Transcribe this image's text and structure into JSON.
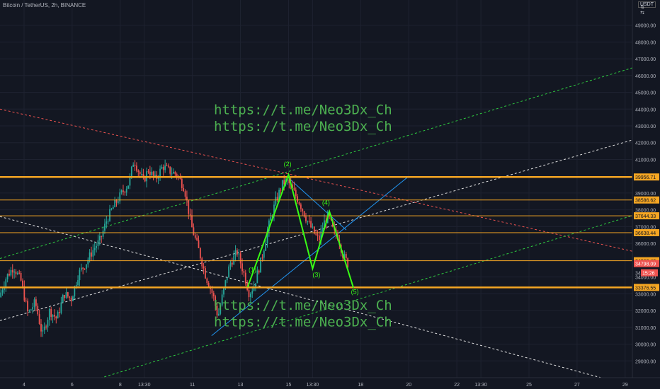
{
  "header": {
    "title": "Bitcoin / TetherUS, 2h, BINANCE",
    "unit": "USDT"
  },
  "colors": {
    "background": "#131722",
    "up": "#26a69a",
    "down": "#ef5350",
    "level": "#f5a623",
    "wave": "#39ff14",
    "text_link": "#4caf50"
  },
  "chart_data": {
    "type": "candlestick",
    "ylim": [
      28000,
      50500
    ],
    "y_ticks": [
      29000,
      30000,
      31000,
      32000,
      33000,
      34000,
      35000,
      36000,
      37000,
      38000,
      39000,
      40000,
      41000,
      42000,
      43000,
      44000,
      45000,
      46000,
      47000,
      48000,
      49000
    ],
    "x_ticks": [
      {
        "label": "4",
        "t": 0.5
      },
      {
        "label": "6",
        "t": 1.5
      },
      {
        "label": "8",
        "t": 2.5
      },
      {
        "label": "13:30",
        "t": 3.0
      },
      {
        "label": "11",
        "t": 4.0
      },
      {
        "label": "13",
        "t": 5.0
      },
      {
        "label": "15",
        "t": 6.0
      },
      {
        "label": "13:30",
        "t": 6.5
      },
      {
        "label": "18",
        "t": 7.5
      },
      {
        "label": "20",
        "t": 8.5
      },
      {
        "label": "22",
        "t": 9.5
      },
      {
        "label": "13:30",
        "t": 10.0
      },
      {
        "label": "25",
        "t": 11.0
      },
      {
        "label": "27",
        "t": 12.0
      },
      {
        "label": "29",
        "t": 13.0
      }
    ],
    "levels": [
      {
        "value": 39956.71,
        "label": "39956.71",
        "thick": true
      },
      {
        "value": 38586.62,
        "label": "38586.62",
        "thick": false
      },
      {
        "value": 37644.33,
        "label": "37644.33",
        "thick": false
      },
      {
        "value": 36638.44,
        "label": "36638.44",
        "thick": false
      },
      {
        "value": 34969.4,
        "label": "34969.40",
        "thick": false
      },
      {
        "value": 33376.55,
        "label": "33376.55",
        "thick": true
      }
    ],
    "price_now": {
      "value": 34798.09,
      "label": "34798.09"
    },
    "countdown": {
      "value": 34250,
      "label": "15:26"
    },
    "price_partial": {
      "value": 34250,
      "label": "34"
    },
    "price_path": [
      [
        0.0,
        32800
      ],
      [
        0.15,
        34000
      ],
      [
        0.3,
        34600
      ],
      [
        0.45,
        33800
      ],
      [
        0.6,
        31800
      ],
      [
        0.75,
        32500
      ],
      [
        0.9,
        30500
      ],
      [
        1.05,
        32000
      ],
      [
        1.2,
        31500
      ],
      [
        1.35,
        33000
      ],
      [
        1.5,
        32700
      ],
      [
        1.65,
        34200
      ],
      [
        1.8,
        34800
      ],
      [
        1.95,
        35600
      ],
      [
        2.1,
        36200
      ],
      [
        2.25,
        37500
      ],
      [
        2.4,
        38300
      ],
      [
        2.55,
        39000
      ],
      [
        2.7,
        39600
      ],
      [
        2.8,
        41000
      ],
      [
        2.9,
        40300
      ],
      [
        3.0,
        39700
      ],
      [
        3.1,
        40400
      ],
      [
        3.25,
        39800
      ],
      [
        3.4,
        40600
      ],
      [
        3.55,
        40300
      ],
      [
        3.7,
        40100
      ],
      [
        3.85,
        39300
      ],
      [
        4.0,
        37000
      ],
      [
        4.15,
        35600
      ],
      [
        4.3,
        34000
      ],
      [
        4.45,
        32900
      ],
      [
        4.55,
        31600
      ],
      [
        4.65,
        33000
      ],
      [
        4.8,
        34800
      ],
      [
        4.95,
        35500
      ],
      [
        5.1,
        34100
      ],
      [
        5.2,
        33000
      ],
      [
        5.3,
        33500
      ],
      [
        5.45,
        35000
      ],
      [
        5.6,
        37000
      ],
      [
        5.75,
        38500
      ],
      [
        5.9,
        39600
      ],
      [
        6.0,
        39700
      ],
      [
        6.1,
        39200
      ],
      [
        6.25,
        38400
      ],
      [
        6.4,
        37400
      ],
      [
        6.55,
        36600
      ],
      [
        6.65,
        36200
      ],
      [
        6.75,
        37200
      ],
      [
        6.85,
        37700
      ],
      [
        6.95,
        36700
      ],
      [
        7.05,
        36400
      ],
      [
        7.15,
        35300
      ],
      [
        7.25,
        34798
      ]
    ],
    "wave": [
      [
        5.15,
        33400
      ],
      [
        6.0,
        40100
      ],
      [
        6.5,
        34500
      ],
      [
        6.85,
        37900
      ],
      [
        7.35,
        33350
      ]
    ],
    "wave_labels": [
      {
        "label": "(1)",
        "t": 5.25,
        "v": 34300
      },
      {
        "label": "(2)",
        "t": 5.98,
        "v": 40600
      },
      {
        "label": "(3)",
        "t": 6.58,
        "v": 34000
      },
      {
        "label": "(4)",
        "t": 6.78,
        "v": 38300
      },
      {
        "label": "(5)",
        "t": 7.38,
        "v": 33000
      }
    ],
    "trendlines": [
      {
        "color": "#ef5350",
        "dash": true,
        "p1": [
          0.0,
          44000
        ],
        "p2": [
          13.2,
          35500
        ]
      },
      {
        "color": "#e0e0e0",
        "dash": true,
        "p1": [
          0.0,
          31400
        ],
        "p2": [
          13.2,
          42200
        ]
      },
      {
        "color": "#e0e0e0",
        "dash": true,
        "p1": [
          0.0,
          37600
        ],
        "p2": [
          12.5,
          28000
        ]
      },
      {
        "color": "#2ecc40",
        "dash": true,
        "p1": [
          0.0,
          35100
        ],
        "p2": [
          13.2,
          46500
        ]
      },
      {
        "color": "#2ecc40",
        "dash": true,
        "p1": [
          2.0,
          27900
        ],
        "p2": [
          13.2,
          37700
        ]
      },
      {
        "color": "#2196f3",
        "dash": false,
        "p1": [
          4.4,
          30500
        ],
        "p2": [
          8.5,
          40000
        ]
      },
      {
        "color": "#2196f3",
        "dash": false,
        "p1": [
          6.0,
          39900
        ],
        "p2": [
          7.2,
          36800
        ]
      }
    ],
    "annotations": [
      {
        "text": "https://t.me/Neo3Dx_Ch",
        "t": 6.3,
        "v": 43700
      },
      {
        "text": "https://t.me/Neo3Dx_Ch",
        "t": 6.3,
        "v": 42700
      },
      {
        "text": "https://t.me/Neo3Dx_Ch",
        "t": 6.3,
        "v": 32050
      },
      {
        "text": "https://t.me/Neo3Dx_Ch",
        "t": 6.3,
        "v": 31050
      }
    ]
  }
}
